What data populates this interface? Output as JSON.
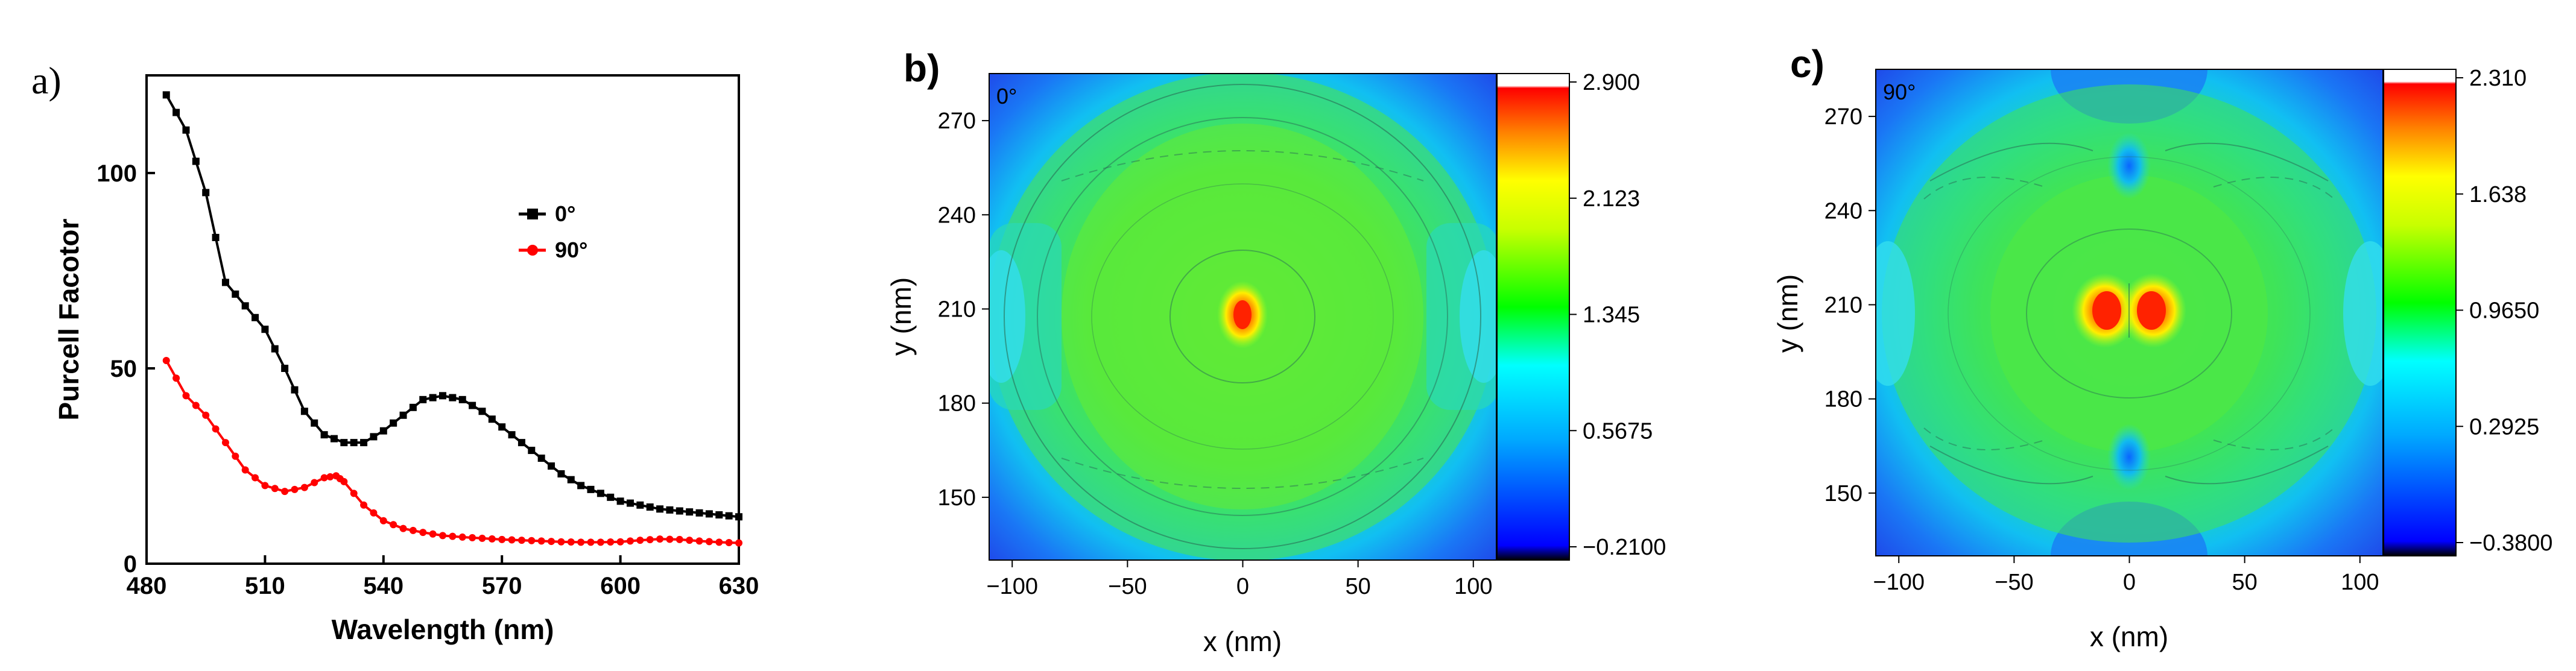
{
  "chart_data": [
    {
      "type": "line",
      "panel_label": "a)",
      "xlabel": "Wavelength (nm)",
      "ylabel": "Purcell Facotor",
      "xlim": [
        480,
        630
      ],
      "ylim": [
        0,
        125
      ],
      "xticks": [
        480,
        510,
        540,
        570,
        600,
        630
      ],
      "yticks": [
        0,
        50,
        100
      ],
      "legend_position": "top-right",
      "grid": false,
      "series": [
        {
          "name": "0°",
          "color": "#000000",
          "marker": "square",
          "x": [
            485,
            490,
            495,
            500,
            505,
            510,
            515,
            520,
            525,
            530,
            535,
            540,
            545,
            550,
            555,
            560,
            565,
            570,
            575,
            580,
            585,
            590,
            595,
            600,
            605,
            610,
            615,
            620,
            625,
            630
          ],
          "y": [
            120,
            111,
            95,
            72,
            66,
            60,
            50,
            39,
            33,
            31,
            31,
            34,
            38,
            42,
            43,
            42,
            39,
            35,
            31,
            27,
            23,
            20,
            18,
            16,
            15,
            14,
            13.5,
            13,
            12.5,
            12
          ]
        },
        {
          "name": "90°",
          "color": "#ff0000",
          "marker": "circle",
          "x": [
            485,
            490,
            495,
            500,
            505,
            510,
            515,
            520,
            525,
            528,
            530,
            535,
            540,
            545,
            550,
            555,
            560,
            565,
            570,
            575,
            580,
            585,
            590,
            595,
            600,
            605,
            610,
            615,
            620,
            625,
            630
          ],
          "y": [
            52,
            43,
            38,
            31,
            24,
            20,
            18.5,
            19.5,
            22,
            22.5,
            21,
            15,
            11,
            9,
            8,
            7.2,
            6.8,
            6.5,
            6.2,
            6.0,
            5.8,
            5.6,
            5.5,
            5.5,
            5.6,
            6.0,
            6.3,
            6.2,
            5.8,
            5.5,
            5.3
          ]
        }
      ]
    },
    {
      "type": "heatmap",
      "panel_label": "b)",
      "inset_label": "0°",
      "xlabel": "x (nm)",
      "ylabel": "y (nm)",
      "xlim": [
        -110,
        110
      ],
      "ylim": [
        130,
        285
      ],
      "xticks": [
        -100,
        -50,
        0,
        50,
        100
      ],
      "yticks": [
        150,
        180,
        210,
        240,
        270
      ],
      "colorbar_ticks": [
        "2.900",
        "2.123",
        "1.345",
        "0.5675",
        "-0.2100"
      ],
      "colorbar_range": [
        -0.21,
        2.9
      ],
      "colormap": "rainbow"
    },
    {
      "type": "heatmap",
      "panel_label": "c)",
      "inset_label": "90°",
      "xlabel": "x (nm)",
      "ylabel": "y (nm)",
      "xlim": [
        -110,
        110
      ],
      "ylim": [
        130,
        285
      ],
      "xticks": [
        -100,
        -50,
        0,
        50,
        100
      ],
      "yticks": [
        150,
        180,
        210,
        240,
        270
      ],
      "colorbar_ticks": [
        "2.310",
        "1.638",
        "0.9650",
        "0.2925",
        "-0.3800"
      ],
      "colorbar_range": [
        -0.38,
        2.31
      ],
      "colormap": "rainbow"
    }
  ]
}
